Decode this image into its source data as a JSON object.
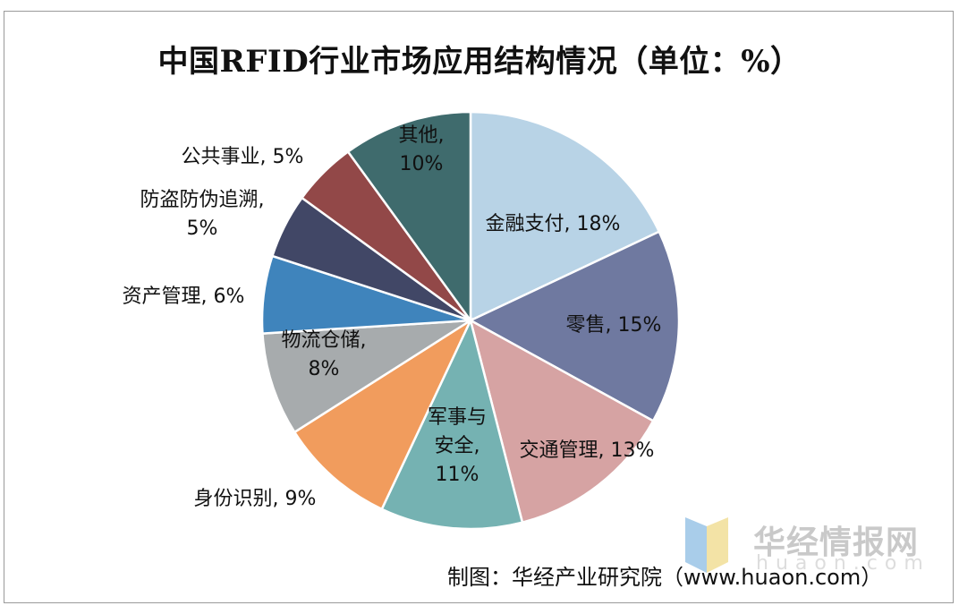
{
  "chart_data": {
    "type": "pie",
    "title": "中国RFID行业市场应用结构情况（单位：%）",
    "unit": "%",
    "slices": [
      {
        "label": "金融支付",
        "value": 18,
        "color": "#b8d3e6",
        "label_lines": [
          "金融支付, 18%"
        ]
      },
      {
        "label": "零售",
        "value": 15,
        "color": "#6f79a0",
        "label_lines": [
          "零售, 15%"
        ]
      },
      {
        "label": "交通管理",
        "value": 13,
        "color": "#d6a3a3",
        "label_lines": [
          "交通管理, 13%"
        ]
      },
      {
        "label": "军事与安全",
        "value": 11,
        "color": "#75b2b2",
        "label_lines": [
          "军事与",
          "安全,",
          "11%"
        ]
      },
      {
        "label": "身份识别",
        "value": 9,
        "color": "#f19c5d",
        "label_lines": [
          "身份识别, 9%"
        ]
      },
      {
        "label": "物流仓储",
        "value": 8,
        "color": "#a7abad",
        "label_lines": [
          "物流仓储,",
          "8%"
        ]
      },
      {
        "label": "资产管理",
        "value": 6,
        "color": "#3f84bc",
        "label_lines": [
          "资产管理, 6%"
        ]
      },
      {
        "label": "防盗防伪追溯",
        "value": 5,
        "color": "#414766",
        "label_lines": [
          "防盗防伪追溯,",
          "5%"
        ]
      },
      {
        "label": "公共事业",
        "value": 5,
        "color": "#924848",
        "label_lines": [
          "公共事业, 5%"
        ]
      },
      {
        "label": "其他",
        "value": 10,
        "color": "#3f6b6d",
        "label_lines": [
          "其他,",
          "10%"
        ]
      }
    ]
  },
  "watermark": {
    "brand": "华经情报网",
    "domain": "huaon.com"
  },
  "source_note": "制图：华经产业研究院（www.huaon.com）"
}
